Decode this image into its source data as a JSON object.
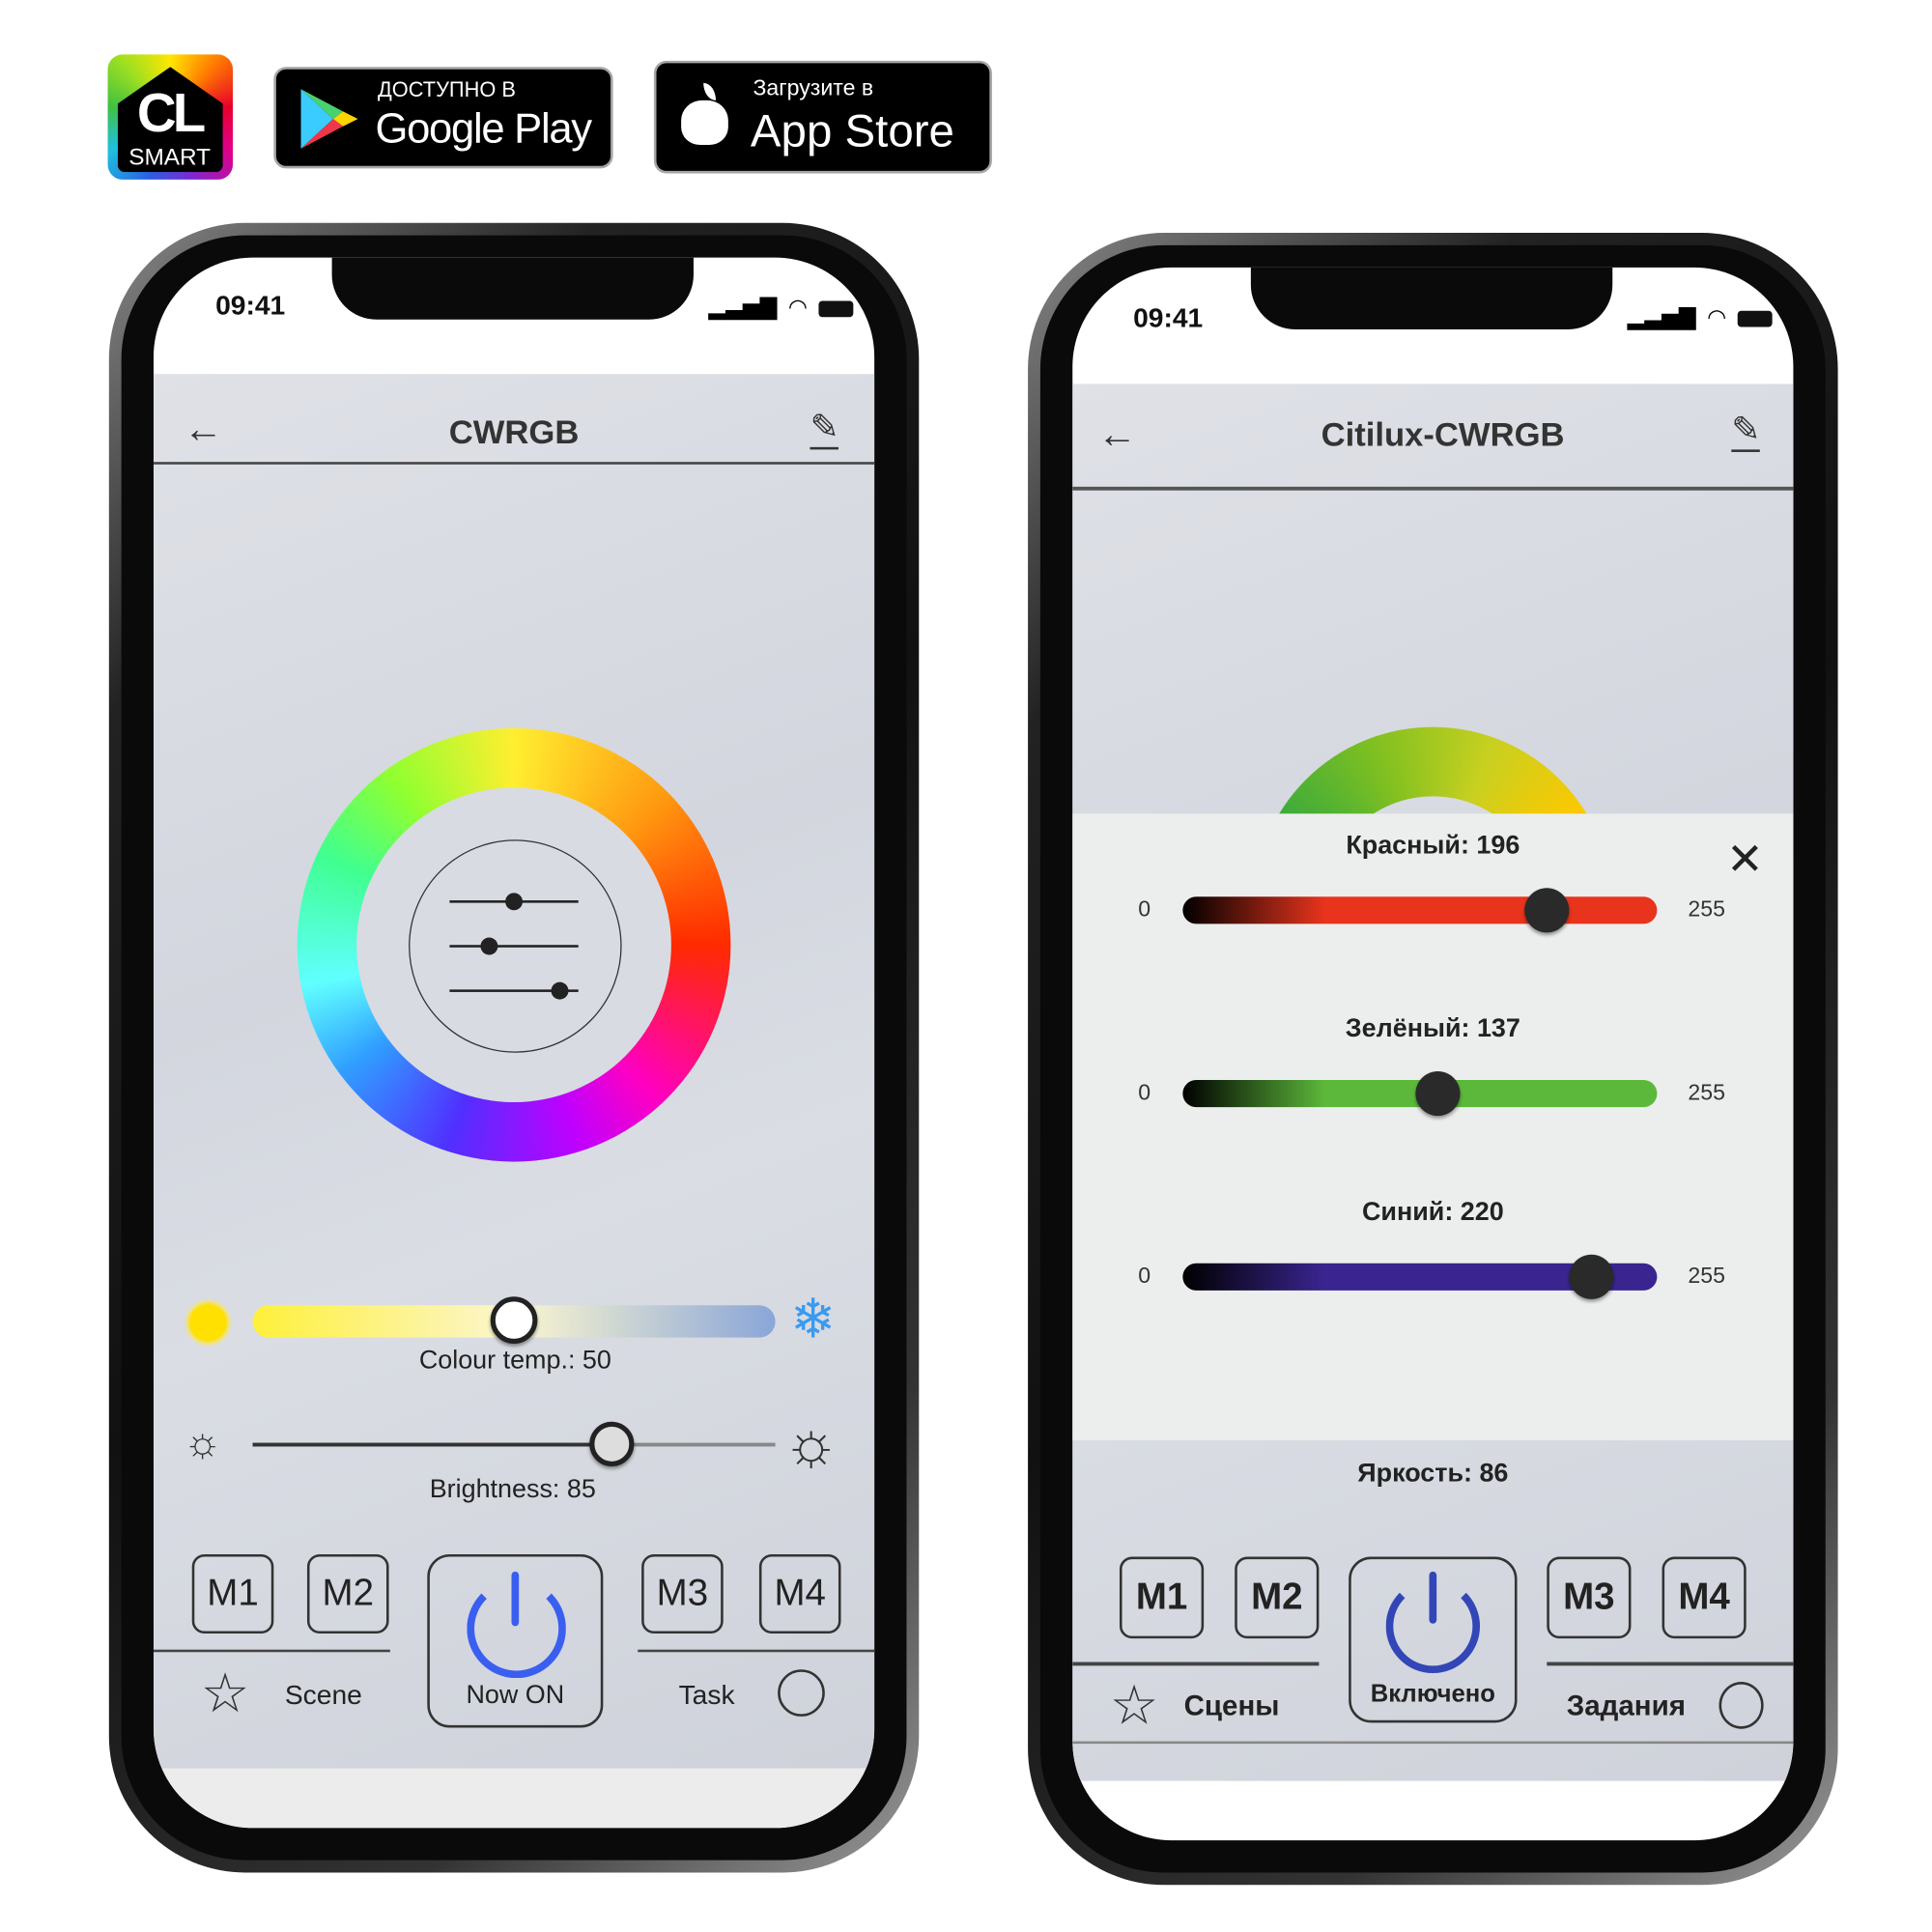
{
  "brand": {
    "logo_text": "CL",
    "logo_sub": "SMART"
  },
  "badges": {
    "google_play": {
      "top": "ДОСТУПНО В",
      "main": "Google Play"
    },
    "app_store": {
      "top": "Загрузите в",
      "main": "App Store"
    }
  },
  "phone_left": {
    "status_time": "09:41",
    "header": {
      "title": "CWRGB"
    },
    "colour_temp": {
      "label": "Colour temp.: 50",
      "value": 50,
      "min": 0,
      "max": 100
    },
    "brightness": {
      "label": "Brightness: 85",
      "value": 85,
      "min": 0,
      "max": 100
    },
    "modes": [
      "M1",
      "M2",
      "M3",
      "M4"
    ],
    "power": {
      "label": "Now ON",
      "color": "#3a5ff0"
    },
    "nav": {
      "scene": "Scene",
      "task": "Task"
    }
  },
  "phone_right": {
    "status_time": "09:41",
    "header": {
      "title": "Citilux-CWRGB"
    },
    "rgb_panel": {
      "sliders": [
        {
          "label": "Красный: 196",
          "value": 196,
          "min": "0",
          "max": "255",
          "color": "#e8341c"
        },
        {
          "label": "Зелёный: 137",
          "value": 137,
          "min": "0",
          "max": "255",
          "color": "#5cb83a"
        },
        {
          "label": "Синий: 220",
          "value": 220,
          "min": "0",
          "max": "255",
          "color": "#3a2590"
        }
      ]
    },
    "brightness_label": "Яркость: 86",
    "modes": [
      "M1",
      "M2",
      "M3",
      "M4"
    ],
    "power": {
      "label": "Включено",
      "color": "#3346b8"
    },
    "nav": {
      "scene": "Сцены",
      "task": "Задания"
    }
  }
}
